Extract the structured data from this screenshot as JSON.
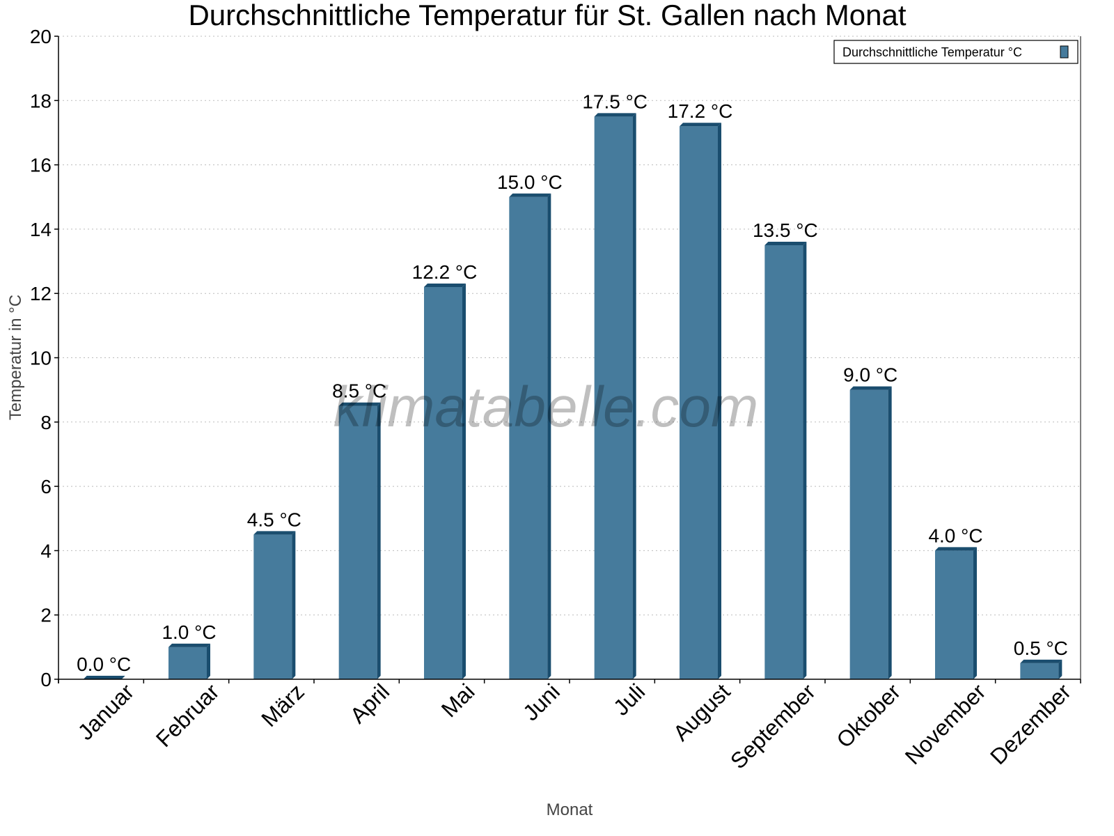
{
  "chart_data": {
    "type": "bar",
    "title": "Durchschnittliche Temperatur für St. Gallen nach Monat",
    "xlabel": "Monat",
    "ylabel": "Temperatur in °C",
    "ylim": [
      0,
      20
    ],
    "yticks": [
      0,
      2,
      4,
      6,
      8,
      10,
      12,
      14,
      16,
      18,
      20
    ],
    "grid": true,
    "legend_position": "top-right",
    "categories": [
      "Januar",
      "Februar",
      "März",
      "April",
      "Mai",
      "Juni",
      "Juli",
      "August",
      "September",
      "Oktober",
      "November",
      "Dezember"
    ],
    "series": [
      {
        "name": "Durchschnittliche Temperatur °C",
        "values": [
          0.0,
          1.0,
          4.5,
          8.5,
          12.2,
          15.0,
          17.5,
          17.2,
          13.5,
          9.0,
          4.0,
          0.5
        ],
        "labels": [
          "0.0 °C",
          "1.0 °C",
          "4.5 °C",
          "8.5 °C",
          "12.2 °C",
          "15.0 °C",
          "17.5 °C",
          "17.2 °C",
          "13.5 °C",
          "9.0 °C",
          "4.0 °C",
          "0.5 °C"
        ],
        "color": "#467b9c",
        "shade_color": "#1a4d6e"
      }
    ],
    "watermark": "klimatabelle.com"
  }
}
